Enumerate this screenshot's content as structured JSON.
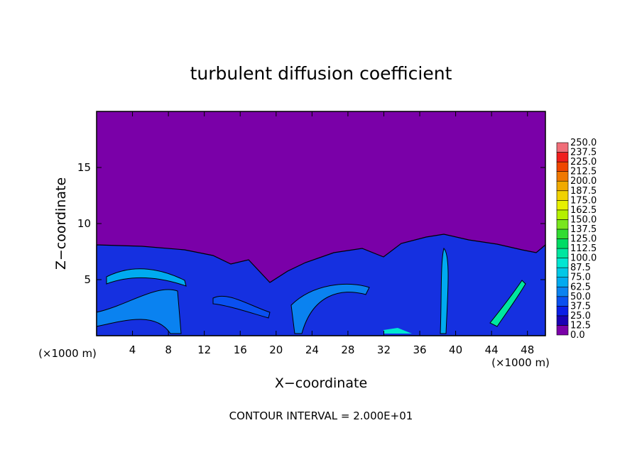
{
  "chart_data": {
    "type": "contour",
    "title": "turbulent diffusion coefficient",
    "x_label": "X−coordinate",
    "y_label": "Z−coordinate",
    "x_unit_left": "(×1000 m)",
    "x_unit_right": "(×1000 m)",
    "annotation": "CONTOUR INTERVAL = 2.000E+01",
    "xlim": [
      0,
      50
    ],
    "ylim": [
      0,
      20
    ],
    "xticks": [
      4,
      8,
      12,
      16,
      20,
      24,
      28,
      32,
      36,
      40,
      44,
      48
    ],
    "yticks": [
      5,
      10,
      15
    ],
    "colorbar": {
      "levels": [
        {
          "value": 0,
          "label": "0.0"
        },
        {
          "value": 12.5,
          "label": "12.5"
        },
        {
          "value": 25,
          "label": "25.0"
        },
        {
          "value": 37.5,
          "label": "37.5"
        },
        {
          "value": 50,
          "label": "50.0"
        },
        {
          "value": 62.5,
          "label": "62.5"
        },
        {
          "value": 75,
          "label": "75.0"
        },
        {
          "value": 87.5,
          "label": "87.5"
        },
        {
          "value": 100,
          "label": "100.0"
        },
        {
          "value": 112.5,
          "label": "112.5"
        },
        {
          "value": 125,
          "label": "125.0"
        },
        {
          "value": 137.5,
          "label": "137.5"
        },
        {
          "value": 150,
          "label": "150.0"
        },
        {
          "value": 162.5,
          "label": "162.5"
        },
        {
          "value": 175,
          "label": "175.0"
        },
        {
          "value": 187.5,
          "label": "187.5"
        },
        {
          "value": 200,
          "label": "200.0"
        },
        {
          "value": 212.5,
          "label": "212.5"
        },
        {
          "value": 225,
          "label": "225.0"
        },
        {
          "value": 237.5,
          "label": "237.5"
        },
        {
          "value": 250,
          "label": "250.0"
        }
      ],
      "colors": [
        "#7a00a8",
        "#1a00b4",
        "#0a1ee6",
        "#0a50f0",
        "#0a82f0",
        "#00aaf0",
        "#00c8e6",
        "#00e6d2",
        "#00e6a0",
        "#00dc64",
        "#32dc32",
        "#78e61e",
        "#b4f000",
        "#e6f000",
        "#f0d200",
        "#f0aa00",
        "#f07800",
        "#f04600",
        "#f01e1e",
        "#f06e78"
      ]
    }
  }
}
